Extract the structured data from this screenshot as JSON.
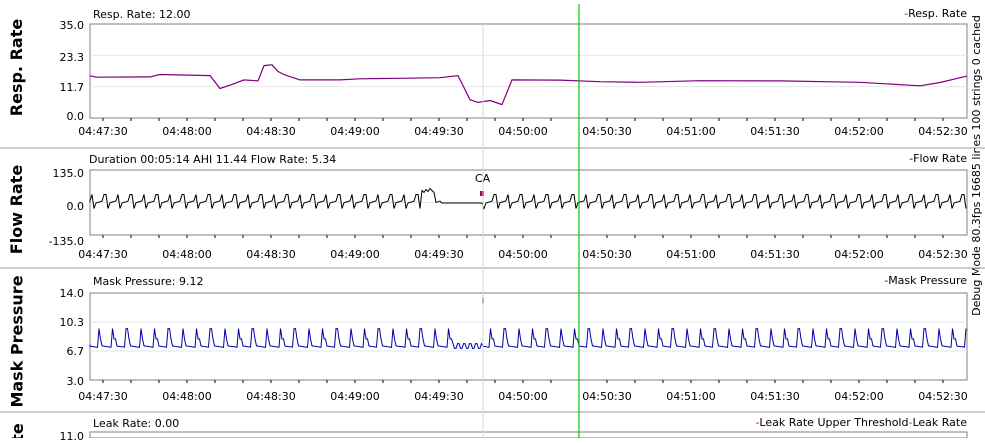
{
  "cursor_color": "#00cc00",
  "debug_text": "Debug Mode 80.3fps 16685 lines 100 strings 0 cached",
  "x_ticks": [
    "04:47:30",
    "04:48:00",
    "04:48:30",
    "04:49:00",
    "04:49:30",
    "04:50:00",
    "04:50:30",
    "04:51:00",
    "04:51:30",
    "04:52:00",
    "04:52:30"
  ],
  "panels": [
    {
      "id": "resp",
      "title": "Resp. Rate",
      "stat": "Resp. Rate: 12.00",
      "legend": "Resp. Rate",
      "legend_color": "#800080",
      "line_color": "#800080",
      "y_ticks": [
        "35.0",
        "23.3",
        "11.7",
        "0.0"
      ],
      "ylim": [
        0,
        35
      ]
    },
    {
      "id": "flow",
      "title": "Flow Rate",
      "stat": "Duration 00:05:14 AHI 11.44 Flow Rate: 5.34",
      "legend": "Flow Rate",
      "legend_color": "#000000",
      "line_color": "#000000",
      "y_ticks": [
        "135.0",
        "0.0",
        "-135.0"
      ],
      "ylim": [
        -135,
        135
      ],
      "event_label": "CA"
    },
    {
      "id": "mask",
      "title": "Mask Pressure",
      "stat": "Mask Pressure: 9.12",
      "legend": "Mask Pressure",
      "legend_color": "#000080",
      "line_color": "#0000aa",
      "y_ticks": [
        "14.0",
        "10.3",
        "6.7",
        "3.0"
      ],
      "ylim": [
        3,
        14
      ]
    },
    {
      "id": "leak",
      "title": "Leak Rate",
      "stat": "Leak Rate: 0.00",
      "legend_items": [
        {
          "label": "Leak Rate Upper Threshold",
          "color": "#ff0000"
        },
        {
          "label": "Leak Rate",
          "color": "#00aa00"
        }
      ],
      "y_ticks": [
        "11.0"
      ]
    }
  ]
}
